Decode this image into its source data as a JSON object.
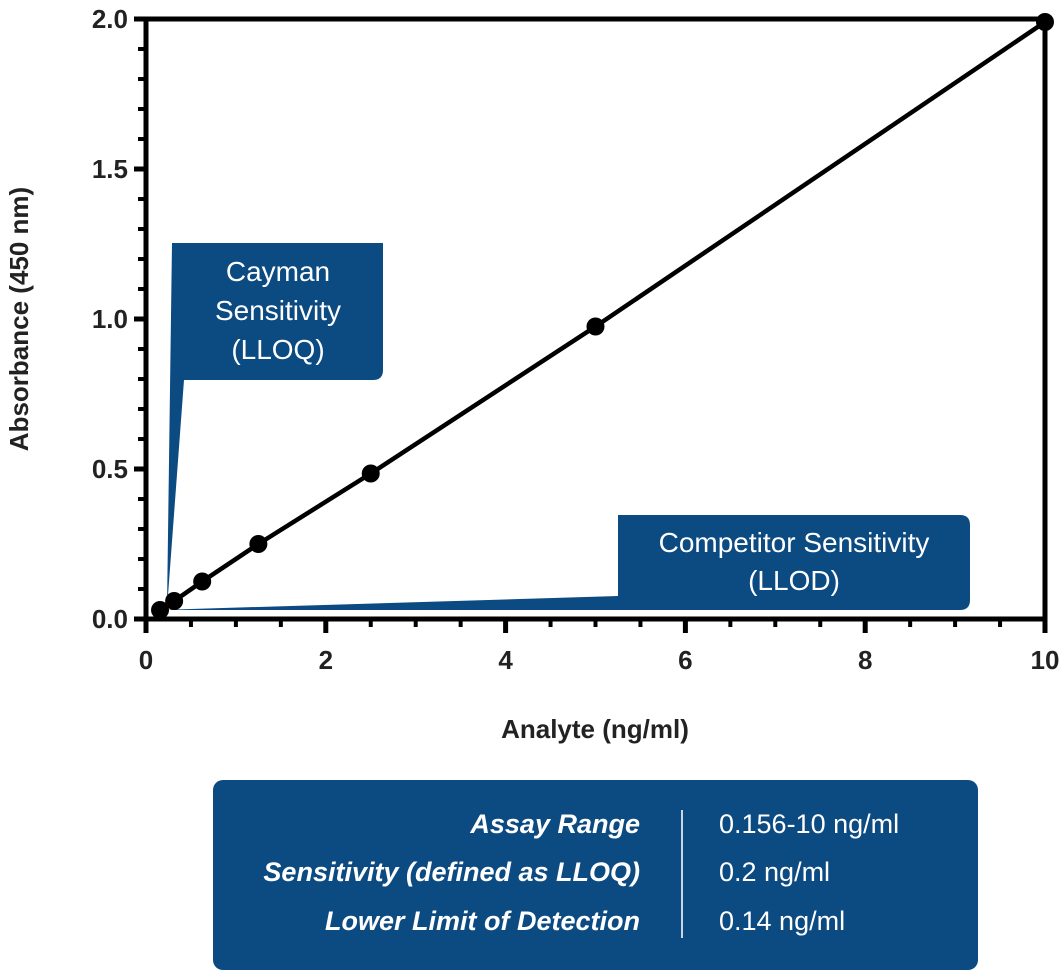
{
  "chart_data": {
    "type": "line",
    "title": "",
    "xlabel": "Analyte (ng/ml)",
    "ylabel": "Absorbance (450 nm)",
    "xlim": [
      0,
      10
    ],
    "ylim": [
      0,
      2.0
    ],
    "x_ticks": [
      "0",
      "2",
      "4",
      "6",
      "8",
      "10"
    ],
    "y_ticks": [
      "0.0",
      "0.5",
      "1.0",
      "1.5",
      "2.0"
    ],
    "x_tick_values": [
      0,
      2,
      4,
      6,
      8,
      10
    ],
    "y_tick_values": [
      0,
      0.5,
      1.0,
      1.5,
      2.0
    ],
    "grid": false,
    "series": [
      {
        "name": "Standard curve",
        "x": [
          0.156,
          0.313,
          0.625,
          1.25,
          2.5,
          5,
          10
        ],
        "y": [
          0.03,
          0.06,
          0.125,
          0.25,
          0.485,
          0.975,
          1.99
        ]
      }
    ],
    "annotations": [
      {
        "name": "cayman",
        "lines": [
          "Cayman",
          "Sensitivity",
          "(LLOQ)"
        ],
        "points_to_x": 0.2
      },
      {
        "name": "competitor",
        "lines": [
          "Competitor Sensitivity",
          "(LLOD)"
        ],
        "points_to_x": 0.14
      }
    ]
  },
  "colors": {
    "callout": "#0c4a82",
    "line": "#000000",
    "text": "#222222"
  },
  "info_table": {
    "rows": [
      {
        "label": "Assay Range",
        "value": "0.156-10 ng/ml"
      },
      {
        "label": "Sensitivity (defined as LLOQ)",
        "value": "0.2 ng/ml"
      },
      {
        "label": "Lower Limit of Detection",
        "value": "0.14 ng/ml"
      }
    ]
  }
}
